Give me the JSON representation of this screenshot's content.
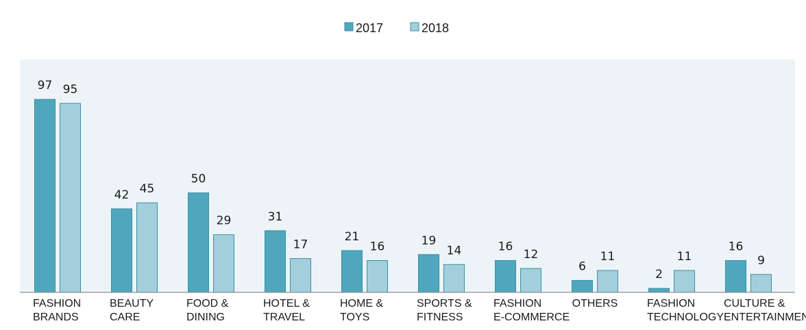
{
  "chart_data": {
    "type": "bar",
    "categories": [
      [
        "FASHION",
        "BRANDS"
      ],
      [
        "BEAUTY",
        "CARE"
      ],
      [
        "FOOD &",
        "DINING"
      ],
      [
        "HOTEL &",
        "TRAVEL"
      ],
      [
        "HOME &",
        "TOYS"
      ],
      [
        "SPORTS &",
        "FITNESS"
      ],
      [
        "FASHION",
        "E-COMMERCE"
      ],
      [
        "OTHERS"
      ],
      [
        "FASHION",
        "TECHNOLOGY"
      ],
      [
        "CULTURE &",
        "ENTERTAINMENT"
      ]
    ],
    "series": [
      {
        "name": "2017",
        "color": "#4fa7bd",
        "values": [
          97,
          42,
          50,
          31,
          21,
          19,
          16,
          6,
          2,
          16
        ]
      },
      {
        "name": "2018",
        "color": "#a3cfdc",
        "values": [
          95,
          45,
          29,
          17,
          16,
          14,
          12,
          11,
          11,
          9
        ]
      }
    ],
    "ylim": [
      0,
      117
    ],
    "legend_position": "top-center",
    "plot_background": "#ecf4f7",
    "bar_border": "#3a8ea4",
    "grid": false,
    "data_labels": true
  }
}
